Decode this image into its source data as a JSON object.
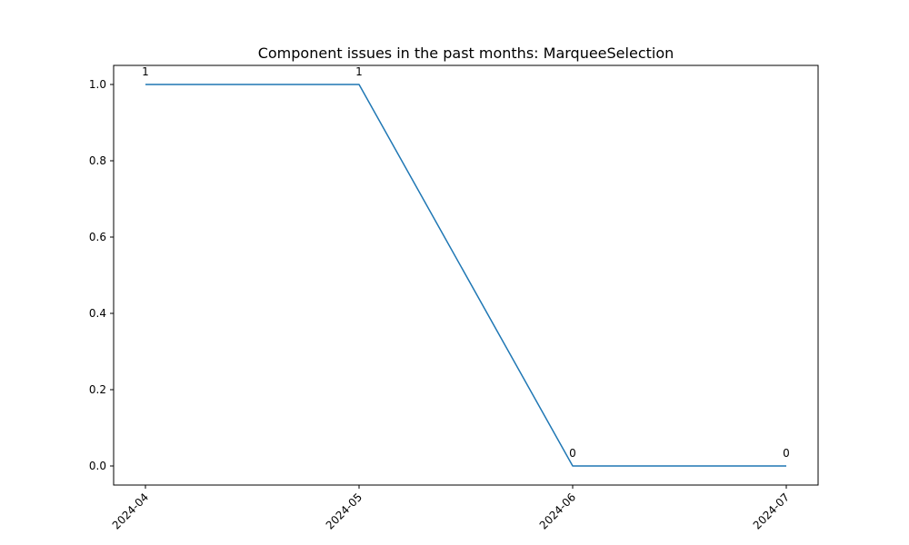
{
  "chart_data": {
    "type": "line",
    "title": "Component issues in the past months: MarqueeSelection",
    "xlabel": "",
    "ylabel": "",
    "categories": [
      "2024-04",
      "2024-05",
      "2024-06",
      "2024-07"
    ],
    "series": [
      {
        "values": [
          1,
          1,
          0,
          0
        ]
      }
    ],
    "data_labels": [
      "1",
      "1",
      "0",
      "0"
    ],
    "yticks": [
      "0.0",
      "0.2",
      "0.4",
      "0.6",
      "0.8",
      "1.0"
    ],
    "ylim": [
      -0.05,
      1.05
    ],
    "grid": false,
    "legend": "none",
    "line_color": "#1f77b4"
  }
}
